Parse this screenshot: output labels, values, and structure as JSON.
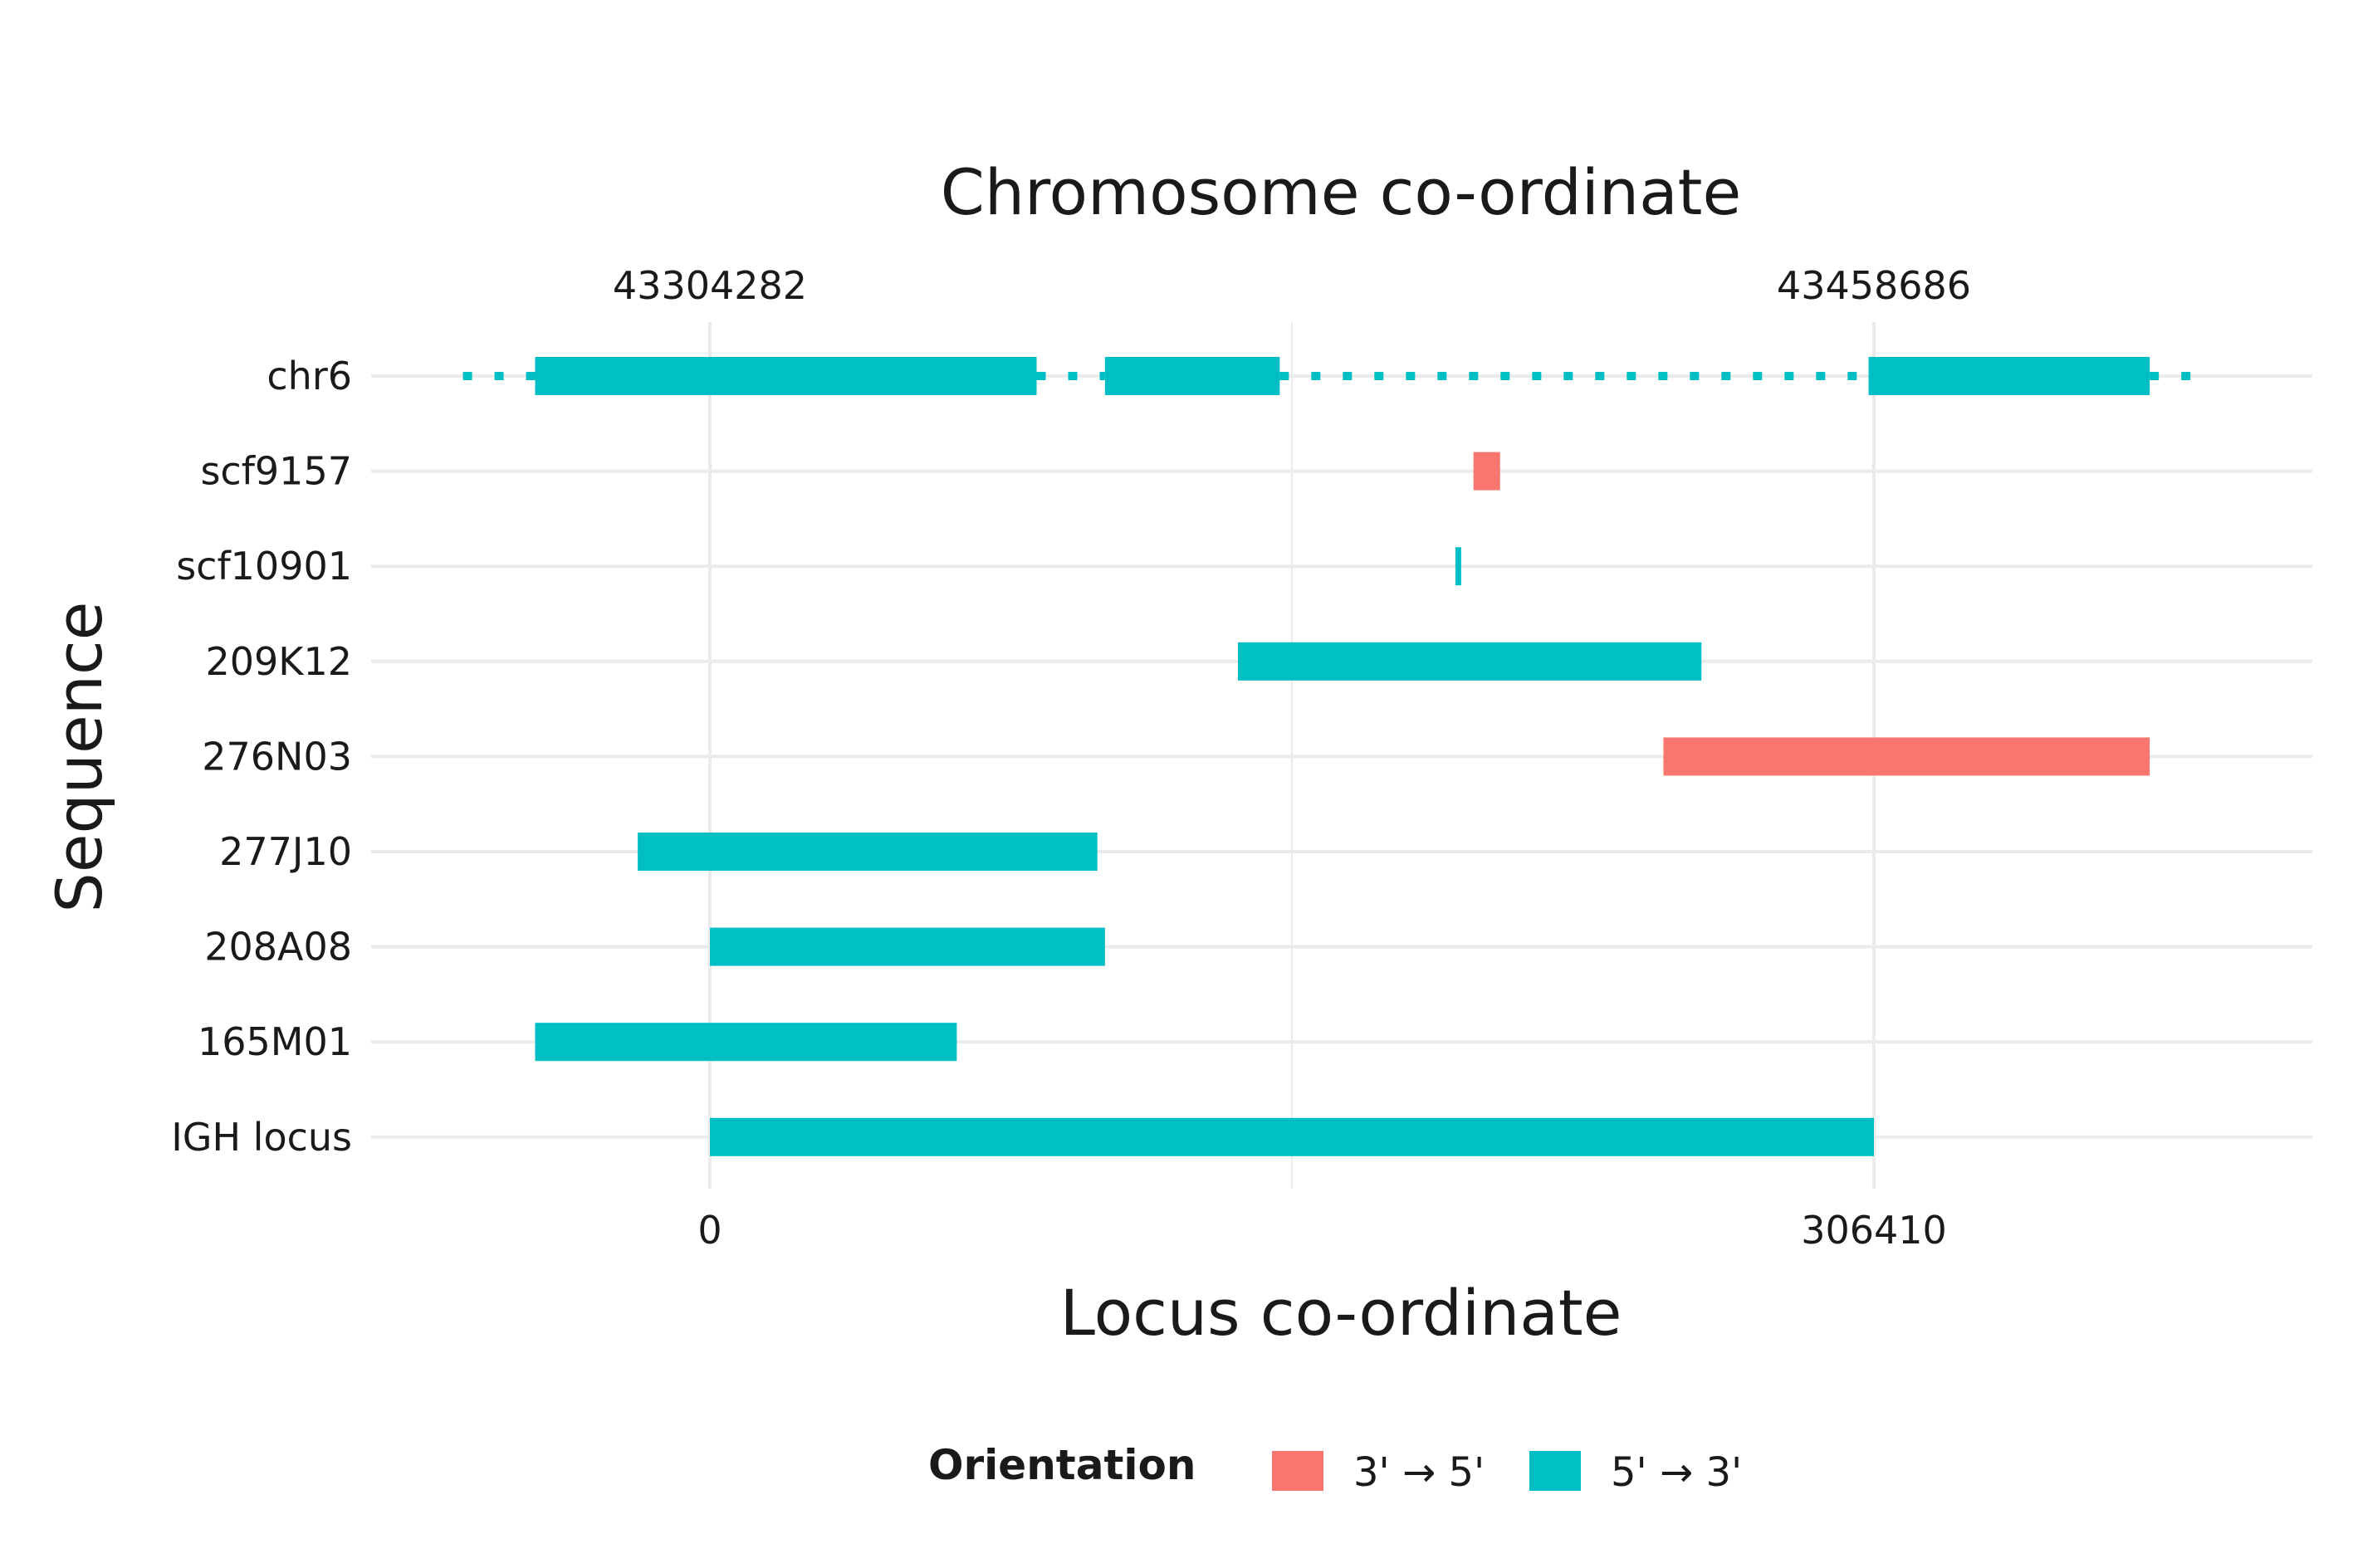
{
  "chart_data": {
    "type": "bar",
    "orientation": "horizontal-range",
    "title": "",
    "xlabel_top": "Chromosome co-ordinate",
    "xlabel": "Locus co-ordinate",
    "ylabel": "Sequence",
    "xlim": [
      -90000,
      386000
    ],
    "x_ticks_bottom": [
      {
        "value": 0,
        "label": "0"
      },
      {
        "value": 306410,
        "label": "306410"
      }
    ],
    "x_ticks_top": [
      {
        "value": 0,
        "label": "43304282"
      },
      {
        "value": 306410,
        "label": "43458686"
      }
    ],
    "categories": [
      "chr6",
      "scf9157",
      "scf10901",
      "209K12",
      "276N03",
      "277J10",
      "208A08",
      "165M01",
      "IGH locus"
    ],
    "segments": [
      {
        "seq": "chr6",
        "start": -46000,
        "end": 86000,
        "orientation": "5' → 3'"
      },
      {
        "seq": "chr6",
        "start": 104000,
        "end": 150000,
        "orientation": "5' → 3'"
      },
      {
        "seq": "chr6",
        "start": 305000,
        "end": 379000,
        "orientation": "5' → 3'"
      },
      {
        "seq": "scf9157",
        "start": 201000,
        "end": 208000,
        "orientation": "3' → 5'"
      },
      {
        "seq": "scf10901",
        "start": 196500,
        "end": 197500,
        "orientation": "5' → 3'"
      },
      {
        "seq": "209K12",
        "start": 139000,
        "end": 261000,
        "orientation": "5' → 3'"
      },
      {
        "seq": "276N03",
        "start": 251000,
        "end": 379000,
        "orientation": "3' → 5'"
      },
      {
        "seq": "277J10",
        "start": -19000,
        "end": 102000,
        "orientation": "5' → 3'"
      },
      {
        "seq": "208A08",
        "start": 0,
        "end": 104000,
        "orientation": "5' → 3'"
      },
      {
        "seq": "165M01",
        "start": -46000,
        "end": 65000,
        "orientation": "5' → 3'"
      },
      {
        "seq": "IGH locus",
        "start": 0,
        "end": 306410,
        "orientation": "5' → 3'"
      }
    ],
    "dotted_gaps": [
      {
        "seq": "chr6",
        "start": -65000,
        "end": -46000
      },
      {
        "seq": "chr6",
        "start": 86000,
        "end": 104000
      },
      {
        "seq": "chr6",
        "start": 150000,
        "end": 305000
      },
      {
        "seq": "chr6",
        "start": 379000,
        "end": 395000
      }
    ],
    "legend": {
      "title": "Orientation",
      "position": "bottom",
      "entries": [
        {
          "label": "3' → 5'",
          "color": "#F8766D"
        },
        {
          "label": "5' → 3'",
          "color": "#00BFC4"
        }
      ]
    },
    "grid": true
  }
}
